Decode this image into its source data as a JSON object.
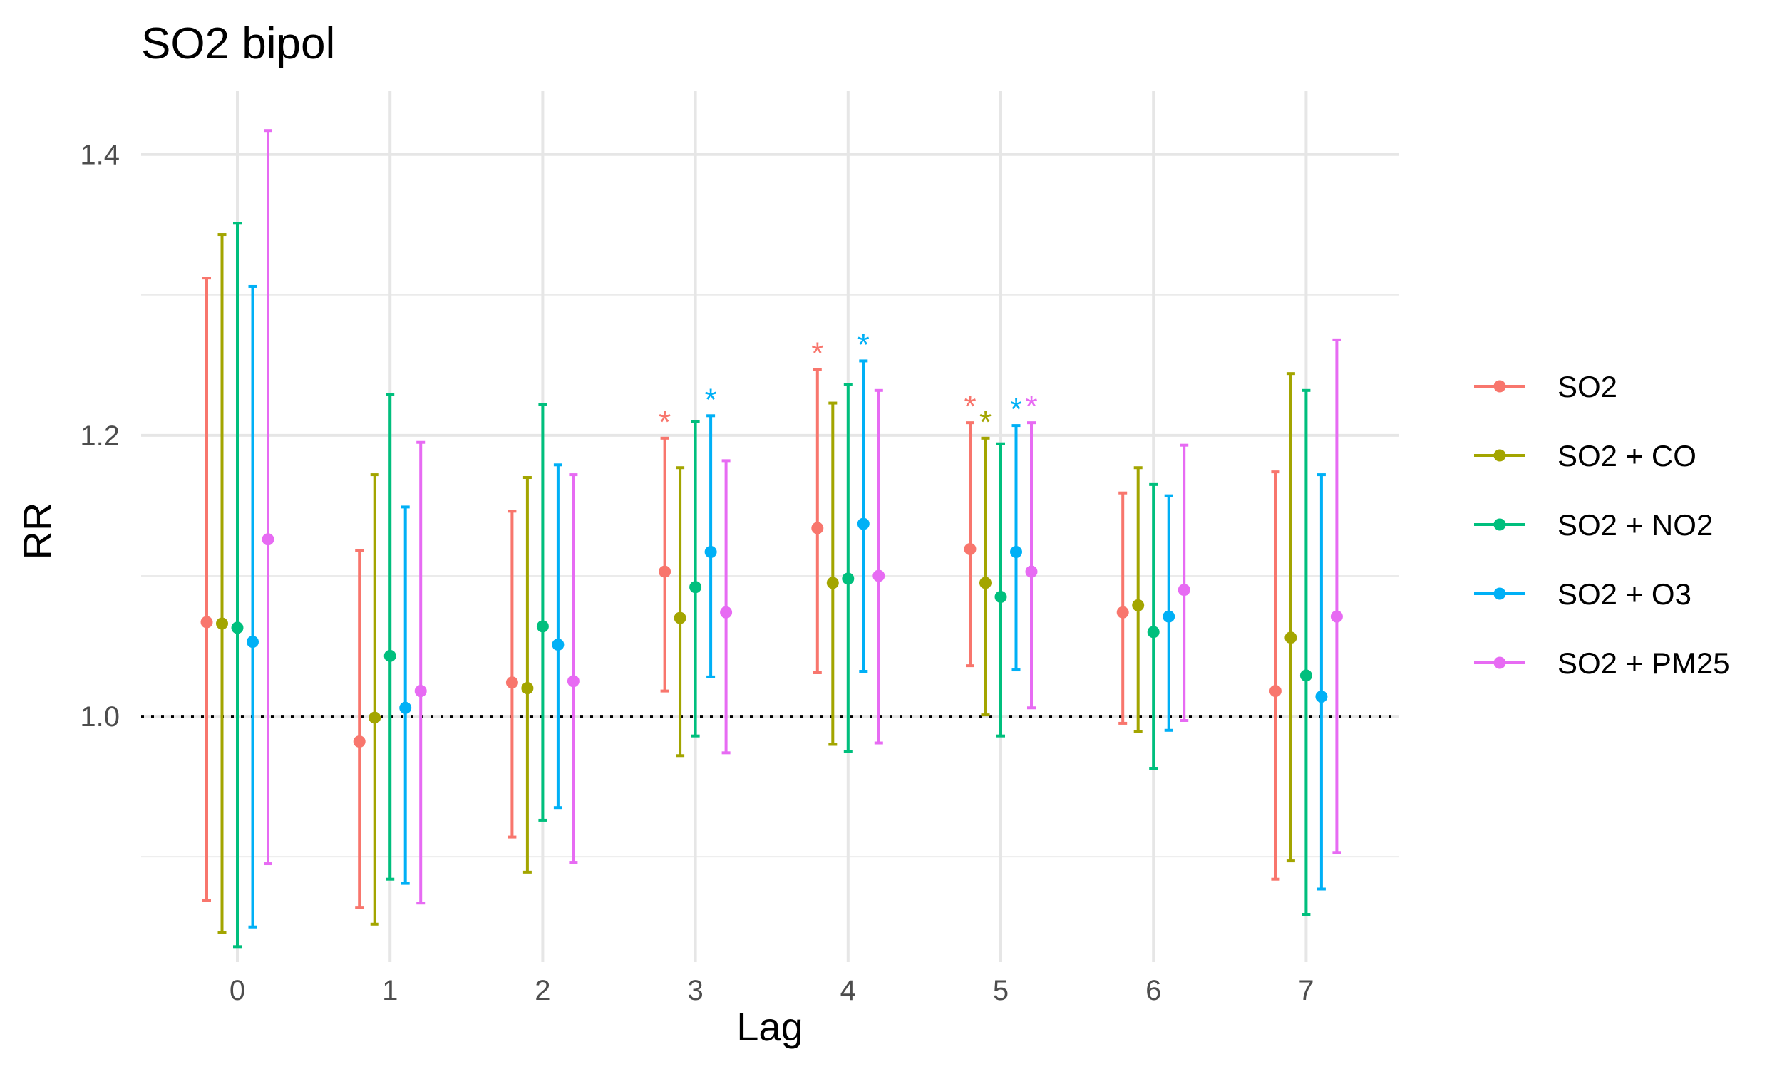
{
  "chart_data": {
    "type": "scatter",
    "subtype": "point-range",
    "title": "SO2 bipol",
    "xlabel": "Lag",
    "ylabel": "RR",
    "x": [
      0,
      1,
      2,
      3,
      4,
      5,
      6,
      7
    ],
    "x_tick_labels": [
      "0",
      "1",
      "2",
      "3",
      "4",
      "5",
      "6",
      "7"
    ],
    "ylim": [
      0.825,
      1.445
    ],
    "y_ticks": [
      1.0,
      1.2,
      1.4
    ],
    "y_tick_labels": [
      "1.0",
      "1.2",
      "1.4"
    ],
    "y_minor_gridlines": [
      0.9,
      1.1,
      1.3
    ],
    "grid": true,
    "reference_line": {
      "y": 1.0,
      "style": "dotted"
    },
    "legend_position": "right",
    "significance_marker": "*",
    "series": [
      {
        "name": "SO2",
        "color": "#F8766D",
        "estimate": [
          1.067,
          0.982,
          1.024,
          1.103,
          1.134,
          1.119,
          1.074,
          1.018
        ],
        "lower": [
          0.869,
          0.864,
          0.914,
          1.018,
          1.031,
          1.036,
          0.995,
          0.884
        ],
        "upper": [
          1.312,
          1.118,
          1.146,
          1.198,
          1.247,
          1.209,
          1.159,
          1.174
        ],
        "significant": [
          false,
          false,
          false,
          true,
          true,
          true,
          false,
          false
        ]
      },
      {
        "name": "SO2 + CO",
        "color": "#A3A500",
        "estimate": [
          1.066,
          0.999,
          1.02,
          1.07,
          1.095,
          1.095,
          1.079,
          1.056
        ],
        "lower": [
          0.846,
          0.852,
          0.889,
          0.972,
          0.98,
          1.001,
          0.989,
          0.897
        ],
        "upper": [
          1.343,
          1.172,
          1.17,
          1.177,
          1.223,
          1.198,
          1.177,
          1.244
        ],
        "significant": [
          false,
          false,
          false,
          false,
          false,
          true,
          false,
          false
        ]
      },
      {
        "name": "SO2 + NO2",
        "color": "#00BF7D",
        "estimate": [
          1.063,
          1.043,
          1.064,
          1.092,
          1.098,
          1.085,
          1.06,
          1.029
        ],
        "lower": [
          0.836,
          0.884,
          0.926,
          0.986,
          0.975,
          0.986,
          0.963,
          0.859
        ],
        "upper": [
          1.351,
          1.229,
          1.222,
          1.21,
          1.236,
          1.194,
          1.165,
          1.232
        ],
        "significant": [
          false,
          false,
          false,
          false,
          false,
          false,
          false,
          false
        ]
      },
      {
        "name": "SO2 + O3",
        "color": "#00B0F6",
        "estimate": [
          1.053,
          1.006,
          1.051,
          1.117,
          1.137,
          1.117,
          1.071,
          1.014
        ],
        "lower": [
          0.85,
          0.881,
          0.935,
          1.028,
          1.032,
          1.033,
          0.99,
          0.877
        ],
        "upper": [
          1.306,
          1.149,
          1.179,
          1.214,
          1.253,
          1.207,
          1.157,
          1.172
        ],
        "significant": [
          false,
          false,
          false,
          true,
          true,
          true,
          false,
          false
        ]
      },
      {
        "name": "SO2 + PM25",
        "color": "#E76BF3",
        "estimate": [
          1.126,
          1.018,
          1.025,
          1.074,
          1.1,
          1.103,
          1.09,
          1.071
        ],
        "lower": [
          0.895,
          0.867,
          0.896,
          0.974,
          0.981,
          1.006,
          0.997,
          0.903
        ],
        "upper": [
          1.417,
          1.195,
          1.172,
          1.182,
          1.232,
          1.209,
          1.193,
          1.268
        ],
        "significant": [
          false,
          false,
          false,
          false,
          false,
          true,
          false,
          false
        ]
      }
    ]
  }
}
